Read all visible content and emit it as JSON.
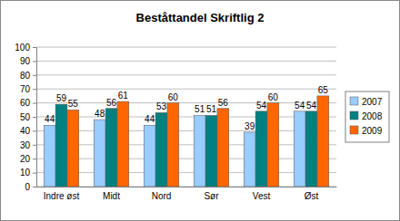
{
  "chart_data": {
    "type": "bar",
    "title": "Beståttandel Skriftlig 2",
    "categories": [
      "Indre øst",
      "Midt",
      "Nord",
      "Sør",
      "Vest",
      "Øst"
    ],
    "series": [
      {
        "name": "2007",
        "color": "#99ccff",
        "values": [
          44,
          48,
          44,
          51,
          39,
          54
        ]
      },
      {
        "name": "2008",
        "color": "#008080",
        "values": [
          59,
          56,
          53,
          51,
          54,
          54
        ]
      },
      {
        "name": "2009",
        "color": "#ff6600",
        "values": [
          55,
          61,
          60,
          56,
          60,
          65
        ]
      }
    ],
    "ylim": [
      0,
      100
    ],
    "yticks": [
      0,
      10,
      20,
      30,
      40,
      50,
      60,
      70,
      80,
      90,
      100
    ],
    "grid": true,
    "data_labels": true,
    "legend": "right"
  }
}
